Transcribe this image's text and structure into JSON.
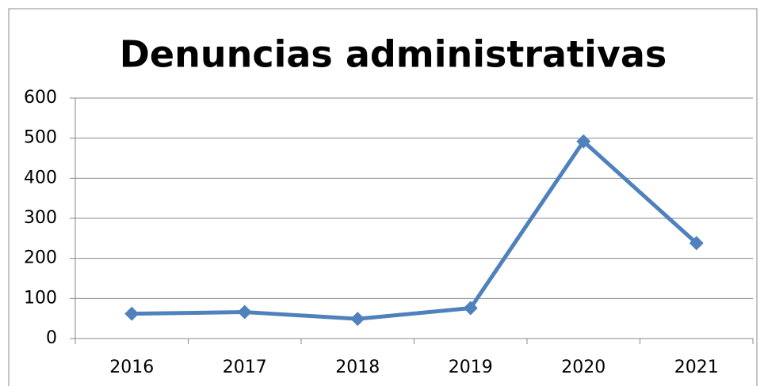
{
  "chart_data": {
    "type": "line",
    "title": "Denuncias administrativas",
    "categories": [
      "2016",
      "2017",
      "2018",
      "2019",
      "2020",
      "2021"
    ],
    "values": [
      62,
      66,
      49,
      76,
      492,
      238
    ],
    "color": "#4f81bd",
    "ylim": [
      0,
      600
    ],
    "yticks": [
      0,
      100,
      200,
      300,
      400,
      500,
      600
    ],
    "grid": true
  }
}
